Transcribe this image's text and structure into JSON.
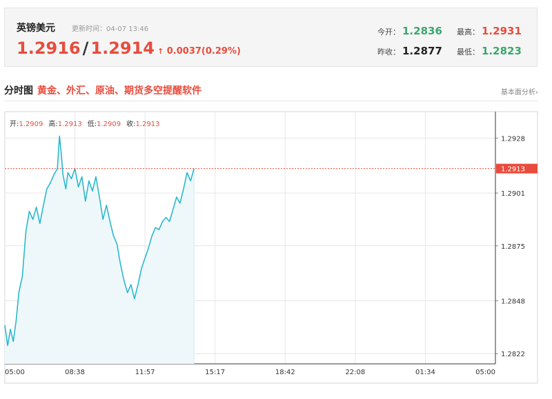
{
  "header": {
    "name": "英镑美元",
    "update_label": "更新时间：04-07 13:46",
    "price_bid": "1.2916",
    "price_ask": "1.2914",
    "change": "0.0037(0.29%)",
    "open_label": "今开：",
    "open_value": "1.2836",
    "prev_close_label": "昨收：",
    "prev_close_value": "1.2877",
    "high_label": "最高：",
    "high_value": "1.2931",
    "low_label": "最低：",
    "low_value": "1.2823"
  },
  "section": {
    "title": "分时图",
    "promo": "黄金、外汇、原油、期货多空提醒软件",
    "more_link": "基本面分析›"
  },
  "ohlc": {
    "open_label": "开:",
    "open": "1.2909",
    "high_label": "高:",
    "high": "1.2913",
    "low_label": "低:",
    "low": "1.2909",
    "close_label": "收:",
    "close": "1.2913"
  },
  "colors": {
    "line": "#2bb8cc",
    "fill": "#eef8fb",
    "up": "#e84c3d",
    "down": "#3aa76d",
    "grid": "#e6e6e6"
  },
  "chart_data": {
    "type": "area",
    "title": "",
    "xlabel": "",
    "ylabel": "",
    "x_ticks": [
      "05:00",
      "08:38",
      "11:57",
      "15:17",
      "18:42",
      "22:08",
      "01:34",
      "05:00"
    ],
    "y_ticks": [
      1.2928,
      1.2901,
      1.2875,
      1.2848,
      1.2822
    ],
    "ylim": [
      1.2817,
      1.2941
    ],
    "current_price": 1.2913,
    "current_price_label": "1.2913",
    "grid": true,
    "series": [
      {
        "name": "",
        "x": [
          0,
          0.04,
          0.08,
          0.12,
          0.16,
          0.2,
          0.25,
          0.3,
          0.35,
          0.4,
          0.45,
          0.5,
          0.55,
          0.6,
          0.65,
          0.7,
          0.75,
          0.78,
          0.8,
          0.83,
          0.87,
          0.9,
          0.95,
          1.0,
          1.05,
          1.1,
          1.15,
          1.2,
          1.25,
          1.3,
          1.35,
          1.4,
          1.45,
          1.5,
          1.55,
          1.6,
          1.65,
          1.7,
          1.75,
          1.8,
          1.85,
          1.9,
          1.95,
          2.0,
          2.05,
          2.1,
          2.15,
          2.2,
          2.25,
          2.3,
          2.35,
          2.4,
          2.45,
          2.5,
          2.55,
          2.6,
          2.65,
          2.7
        ],
        "values": [
          1.2836,
          1.2826,
          1.2834,
          1.2828,
          1.2838,
          1.2852,
          1.286,
          1.2882,
          1.2892,
          1.2888,
          1.2894,
          1.2886,
          1.2895,
          1.2903,
          1.2906,
          1.291,
          1.2913,
          1.2929,
          1.2922,
          1.291,
          1.2903,
          1.2911,
          1.2908,
          1.2913,
          1.2904,
          1.2909,
          1.2897,
          1.2907,
          1.2902,
          1.2909,
          1.2899,
          1.2888,
          1.2895,
          1.2887,
          1.288,
          1.2876,
          1.2866,
          1.2858,
          1.2852,
          1.2856,
          1.2849,
          1.2856,
          1.2864,
          1.2869,
          1.2874,
          1.288,
          1.2884,
          1.2883,
          1.2887,
          1.2889,
          1.2887,
          1.2893,
          1.2899,
          1.2896,
          1.2903,
          1.2911,
          1.2907,
          1.2913
        ]
      }
    ]
  }
}
